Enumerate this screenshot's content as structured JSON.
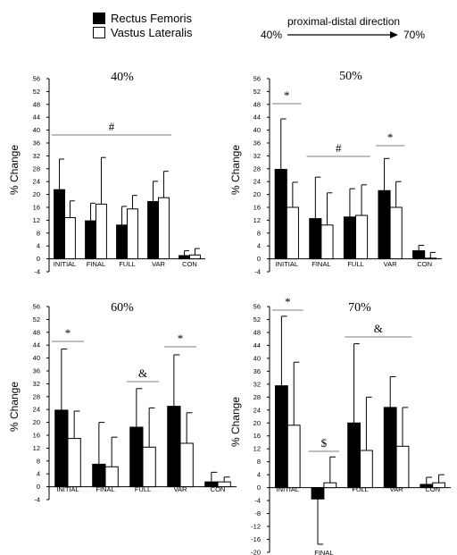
{
  "legend": {
    "items": [
      {
        "label": "Rectus Femoris",
        "color": "#000000"
      },
      {
        "label": "Vastus Lateralis",
        "color": "#ffffff"
      }
    ]
  },
  "direction": {
    "title": "proximal-distal direction",
    "from": "40%",
    "to": "70%"
  },
  "chart_data": [
    {
      "type": "bar",
      "title": "40%",
      "ylabel": "% Change",
      "ylim": [
        -4,
        56
      ],
      "yticks": [
        -4,
        0,
        4,
        8,
        12,
        16,
        20,
        24,
        28,
        32,
        36,
        40,
        44,
        48,
        52,
        56
      ],
      "categories": [
        "INITIAL",
        "FINAL",
        "FULL",
        "VAR",
        "CON"
      ],
      "series": [
        {
          "name": "Rectus Femoris",
          "values": [
            21.5,
            11.8,
            10.5,
            17.8,
            1.0
          ],
          "errors": [
            9.5,
            5.5,
            5.8,
            6.3,
            1.5
          ]
        },
        {
          "name": "Vastus Lateralis",
          "values": [
            12.8,
            17.0,
            15.5,
            19.0,
            1.2
          ],
          "errors": [
            5.2,
            14.5,
            4.2,
            8.2,
            2.0
          ]
        }
      ],
      "annotations": [
        {
          "text": "#",
          "from": "INITIAL",
          "to": "VAR"
        }
      ]
    },
    {
      "type": "bar",
      "title": "50%",
      "ylabel": "% Change",
      "ylim": [
        -4,
        56
      ],
      "yticks": [
        -4,
        0,
        4,
        8,
        12,
        16,
        20,
        24,
        28,
        32,
        36,
        40,
        44,
        48,
        52,
        56
      ],
      "categories": [
        "INITIAL",
        "FINAL",
        "FULL",
        "VAR",
        "CON"
      ],
      "series": [
        {
          "name": "Rectus Femoris",
          "values": [
            27.8,
            12.5,
            13.0,
            21.2,
            2.5
          ],
          "errors": [
            15.7,
            12.9,
            8.8,
            10.0,
            1.7
          ]
        },
        {
          "name": "Vastus Lateralis",
          "values": [
            16.0,
            10.5,
            13.5,
            16.0,
            0.2
          ],
          "errors": [
            7.8,
            10.0,
            9.5,
            8.0,
            1.8
          ]
        }
      ],
      "annotations": [
        {
          "text": "*",
          "from": "INITIAL",
          "to": "INITIAL"
        },
        {
          "text": "#",
          "from": "FINAL",
          "to": "FULL"
        },
        {
          "text": "*",
          "from": "VAR",
          "to": "VAR"
        }
      ]
    },
    {
      "type": "bar",
      "title": "60%",
      "ylabel": "% Change",
      "ylim": [
        -4,
        56
      ],
      "yticks": [
        -4,
        0,
        4,
        8,
        12,
        16,
        20,
        24,
        28,
        32,
        36,
        40,
        44,
        48,
        52,
        56
      ],
      "categories": [
        "INITIAL",
        "FINAL",
        "FULL",
        "VAR",
        "CON"
      ],
      "series": [
        {
          "name": "Rectus Femoris",
          "values": [
            23.8,
            7.0,
            18.5,
            25.0,
            1.5
          ],
          "errors": [
            19.0,
            13.0,
            12.0,
            16.0,
            3.0
          ]
        },
        {
          "name": "Vastus Lateralis",
          "values": [
            15.0,
            6.2,
            12.3,
            13.5,
            1.5
          ],
          "errors": [
            8.5,
            9.2,
            12.2,
            9.5,
            1.5
          ]
        }
      ],
      "annotations": [
        {
          "text": "*",
          "from": "INITIAL",
          "to": "INITIAL"
        },
        {
          "text": "&",
          "from": "FULL",
          "to": "FULL"
        },
        {
          "text": "*",
          "from": "VAR",
          "to": "VAR"
        }
      ]
    },
    {
      "type": "bar",
      "title": "70%",
      "ylabel": "% Change",
      "ylim": [
        -20,
        56
      ],
      "yticks": [
        -20,
        -16,
        -12,
        -8,
        -4,
        0,
        4,
        8,
        12,
        16,
        20,
        24,
        28,
        32,
        36,
        40,
        44,
        48,
        52,
        56
      ],
      "categories": [
        "INITIAL",
        "FINAL",
        "FULL",
        "VAR",
        "CON"
      ],
      "series": [
        {
          "name": "Rectus Femoris",
          "values": [
            31.5,
            -3.5,
            20.0,
            24.8,
            1.0
          ],
          "errors": [
            21.5,
            14.0,
            24.5,
            9.5,
            2.2
          ]
        },
        {
          "name": "Vastus Lateralis",
          "values": [
            19.3,
            1.5,
            11.5,
            12.8,
            1.5
          ],
          "errors": [
            19.5,
            8.0,
            16.5,
            12.0,
            2.5
          ]
        }
      ],
      "annotations": [
        {
          "text": "*",
          "from": "INITIAL",
          "to": "INITIAL"
        },
        {
          "text": "$",
          "from": "FINAL",
          "to": "FINAL"
        },
        {
          "text": "&",
          "from": "FULL",
          "to": "VAR"
        }
      ]
    }
  ]
}
